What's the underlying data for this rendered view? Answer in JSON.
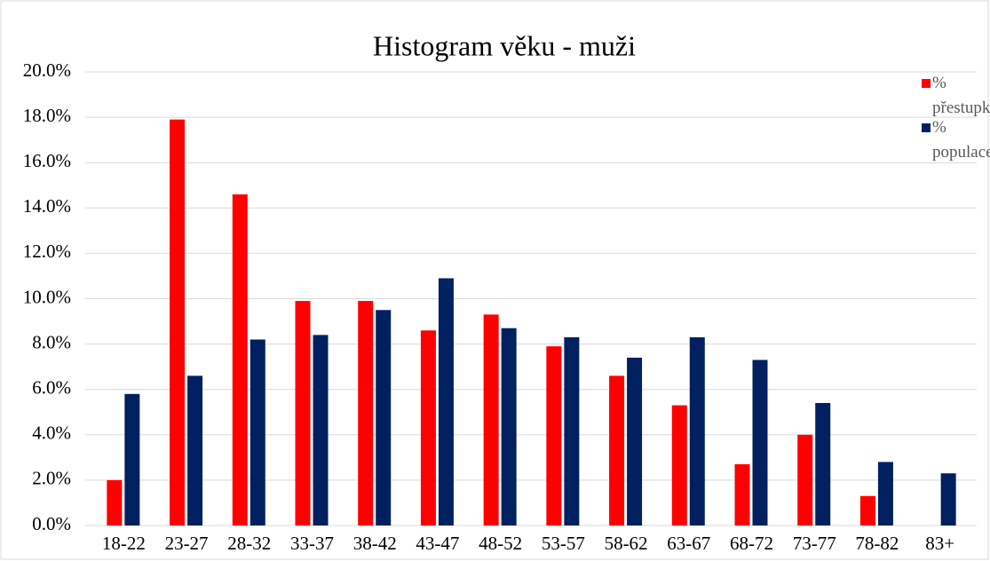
{
  "chart_data": {
    "type": "bar",
    "title": "Histogram věku - muži",
    "categories": [
      "18-22",
      "23-27",
      "28-32",
      "33-37",
      "38-42",
      "43-47",
      "48-52",
      "53-57",
      "58-62",
      "63-67",
      "68-72",
      "73-77",
      "78-82",
      "83+"
    ],
    "series": [
      {
        "name": "% přestupky",
        "color": "#ff0000",
        "values": [
          2.0,
          17.9,
          14.6,
          9.9,
          9.9,
          8.6,
          9.3,
          7.9,
          6.6,
          5.3,
          2.7,
          4.0,
          1.3,
          0
        ]
      },
      {
        "name": "% populace",
        "color": "#002060",
        "values": [
          5.8,
          6.6,
          8.2,
          8.4,
          9.5,
          10.9,
          8.7,
          8.3,
          7.4,
          8.3,
          7.3,
          5.4,
          2.8,
          2.3
        ]
      }
    ],
    "ylim": [
      0,
      20
    ],
    "yticks": [
      {
        "value": 0,
        "label": "0.0%"
      },
      {
        "value": 2,
        "label": "2.0%"
      },
      {
        "value": 4,
        "label": "4.0%"
      },
      {
        "value": 6,
        "label": "6.0%"
      },
      {
        "value": 8,
        "label": "8.0%"
      },
      {
        "value": 10,
        "label": "10.0%"
      },
      {
        "value": 12,
        "label": "12.0%"
      },
      {
        "value": 14,
        "label": "14.0%"
      },
      {
        "value": 16,
        "label": "16.0%"
      },
      {
        "value": 18,
        "label": "18.0%"
      },
      {
        "value": 20,
        "label": "20.0%"
      }
    ],
    "grid": true,
    "legend": "top-right"
  }
}
